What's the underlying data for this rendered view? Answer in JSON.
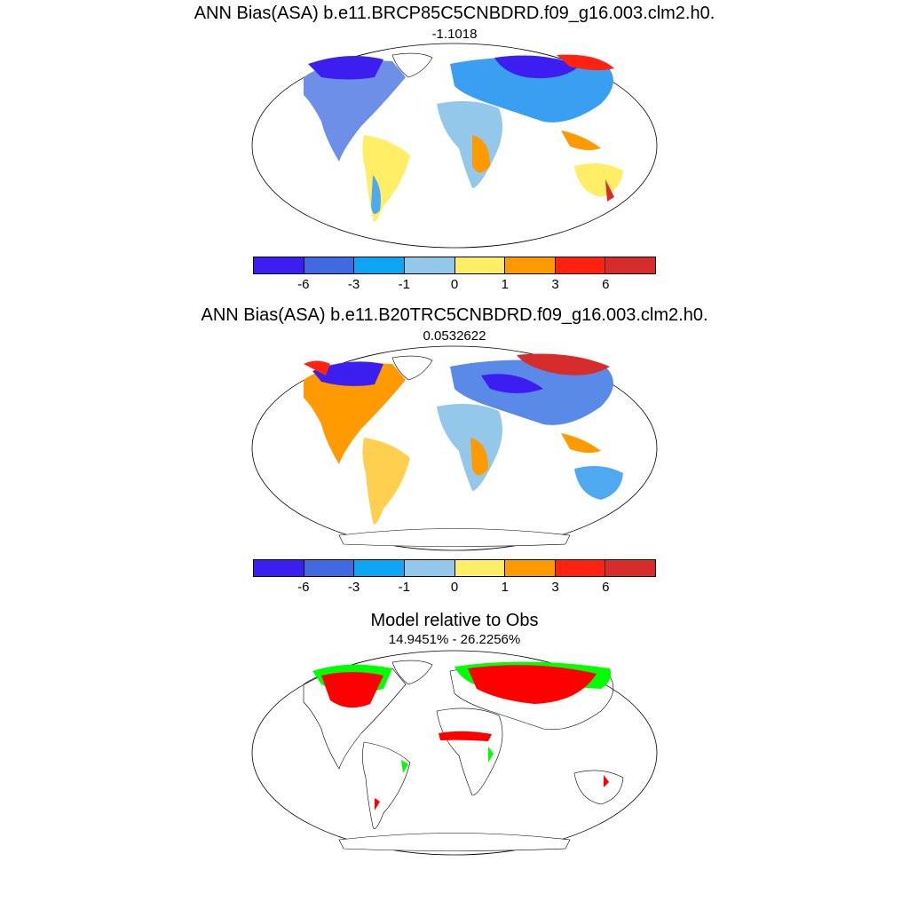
{
  "panels": [
    {
      "title": "ANN Bias(ASA) b.e11.BRCP85C5CNBDRD.f09_g16.003.clm2.h0.",
      "subtitle": "-1.1018"
    },
    {
      "title": "ANN Bias(ASA) b.e11.B20TRC5CNBDRD.f09_g16.003.clm2.h0.",
      "subtitle": "0.0532622"
    },
    {
      "title": "Model relative to Obs",
      "subtitle": "14.9451% - 26.2256%"
    }
  ],
  "colorbar": {
    "colors": [
      "#3d1ef0",
      "#4169e1",
      "#0ea5f5",
      "#93c8ea",
      "#ffee66",
      "#ff9a00",
      "#ff2210",
      "#d62c2c"
    ],
    "tick_labels": [
      "-6",
      "-3",
      "-1",
      "0",
      "1",
      "3",
      "6"
    ]
  },
  "relative_colors": {
    "red": "#ff0000",
    "green": "#00ff00"
  }
}
